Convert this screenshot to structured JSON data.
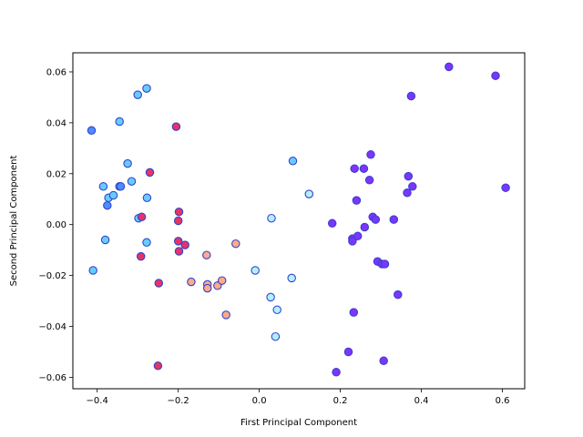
{
  "chart_data": {
    "type": "scatter",
    "title": "",
    "xlabel": "First Principal Component",
    "ylabel": "Second Principal Component",
    "xlim": [
      -0.46,
      0.655
    ],
    "ylim": [
      -0.0645,
      0.0675
    ],
    "xticks": [
      -0.4,
      -0.2,
      0.0,
      0.2,
      0.4,
      0.6
    ],
    "xtick_labels": [
      "−0.4",
      "−0.2",
      "0.0",
      "0.2",
      "0.4",
      "0.6"
    ],
    "yticks": [
      -0.06,
      -0.04,
      -0.02,
      0.0,
      0.02,
      0.04,
      0.06
    ],
    "ytick_labels": [
      "−0.06",
      "−0.04",
      "−0.02",
      "0.00",
      "0.02",
      "0.04",
      "0.06"
    ],
    "grid": false,
    "legend": "none",
    "edge_color": "#3344cc",
    "points": [
      {
        "x": -0.414,
        "y": 0.037,
        "color": "#4d8cff"
      },
      {
        "x": -0.41,
        "y": -0.018,
        "color": "#66ccff"
      },
      {
        "x": -0.385,
        "y": 0.015,
        "color": "#66ccff"
      },
      {
        "x": -0.38,
        "y": -0.006,
        "color": "#66ccff"
      },
      {
        "x": -0.375,
        "y": 0.0075,
        "color": "#4d8cff"
      },
      {
        "x": -0.372,
        "y": 0.0105,
        "color": "#66ccff"
      },
      {
        "x": -0.36,
        "y": 0.0115,
        "color": "#66ccff"
      },
      {
        "x": -0.345,
        "y": 0.015,
        "color": "#66ccff"
      },
      {
        "x": -0.342,
        "y": 0.015,
        "color": "#4d8cff"
      },
      {
        "x": -0.345,
        "y": 0.0405,
        "color": "#66ccff"
      },
      {
        "x": -0.325,
        "y": 0.024,
        "color": "#66ccff"
      },
      {
        "x": -0.315,
        "y": 0.017,
        "color": "#66ccff"
      },
      {
        "x": -0.3,
        "y": 0.051,
        "color": "#66ccff"
      },
      {
        "x": -0.298,
        "y": 0.0025,
        "color": "#66ccff"
      },
      {
        "x": -0.278,
        "y": 0.0535,
        "color": "#66ccff"
      },
      {
        "x": -0.278,
        "y": -0.007,
        "color": "#66ccff"
      },
      {
        "x": -0.277,
        "y": 0.0105,
        "color": "#66ccff"
      },
      {
        "x": -0.29,
        "y": 0.003,
        "color": "#e63366"
      },
      {
        "x": -0.292,
        "y": -0.0125,
        "color": "#e63366"
      },
      {
        "x": -0.27,
        "y": 0.0205,
        "color": "#e63366"
      },
      {
        "x": -0.248,
        "y": -0.023,
        "color": "#e63366"
      },
      {
        "x": -0.25,
        "y": -0.0555,
        "color": "#e63366"
      },
      {
        "x": -0.205,
        "y": 0.0385,
        "color": "#e63366"
      },
      {
        "x": -0.198,
        "y": 0.005,
        "color": "#e63366"
      },
      {
        "x": -0.2,
        "y": 0.0015,
        "color": "#e63366"
      },
      {
        "x": -0.2,
        "y": -0.0065,
        "color": "#e63366"
      },
      {
        "x": -0.198,
        "y": -0.0105,
        "color": "#e63366"
      },
      {
        "x": -0.183,
        "y": -0.008,
        "color": "#e63366"
      },
      {
        "x": -0.168,
        "y": -0.0225,
        "color": "#ffaa88"
      },
      {
        "x": -0.13,
        "y": -0.012,
        "color": "#ffaa88"
      },
      {
        "x": -0.128,
        "y": -0.0235,
        "color": "#ffaa88"
      },
      {
        "x": -0.128,
        "y": -0.025,
        "color": "#ffaa88"
      },
      {
        "x": -0.103,
        "y": -0.024,
        "color": "#ffaa88"
      },
      {
        "x": -0.092,
        "y": -0.022,
        "color": "#ffaa88"
      },
      {
        "x": -0.082,
        "y": -0.0355,
        "color": "#ffaa88"
      },
      {
        "x": -0.058,
        "y": -0.0075,
        "color": "#ffaa88"
      },
      {
        "x": -0.01,
        "y": -0.018,
        "color": "#b3f0ff"
      },
      {
        "x": 0.028,
        "y": -0.0285,
        "color": "#b3f0ff"
      },
      {
        "x": 0.03,
        "y": 0.0025,
        "color": "#b3f0ff"
      },
      {
        "x": 0.04,
        "y": -0.044,
        "color": "#b3f0ff"
      },
      {
        "x": 0.044,
        "y": -0.0335,
        "color": "#b3f0ff"
      },
      {
        "x": 0.08,
        "y": -0.021,
        "color": "#b3f0ff"
      },
      {
        "x": 0.083,
        "y": 0.025,
        "color": "#66ccff"
      },
      {
        "x": 0.123,
        "y": 0.012,
        "color": "#b3f0ff"
      },
      {
        "x": 0.18,
        "y": 0.0005,
        "color": "#7f33ff"
      },
      {
        "x": 0.19,
        "y": -0.058,
        "color": "#7f33ff"
      },
      {
        "x": 0.22,
        "y": -0.05,
        "color": "#7f33ff"
      },
      {
        "x": 0.23,
        "y": -0.0055,
        "color": "#7f33ff"
      },
      {
        "x": 0.23,
        "y": -0.0065,
        "color": "#7f33ff"
      },
      {
        "x": 0.233,
        "y": -0.0345,
        "color": "#7f33ff"
      },
      {
        "x": 0.235,
        "y": 0.022,
        "color": "#7f33ff"
      },
      {
        "x": 0.24,
        "y": 0.0095,
        "color": "#7f33ff"
      },
      {
        "x": 0.243,
        "y": -0.0045,
        "color": "#7f33ff"
      },
      {
        "x": 0.258,
        "y": 0.022,
        "color": "#7f33ff"
      },
      {
        "x": 0.26,
        "y": -0.001,
        "color": "#7f33ff"
      },
      {
        "x": 0.272,
        "y": 0.0175,
        "color": "#7f33ff"
      },
      {
        "x": 0.275,
        "y": 0.0275,
        "color": "#7f33ff"
      },
      {
        "x": 0.28,
        "y": 0.003,
        "color": "#7f33ff"
      },
      {
        "x": 0.287,
        "y": 0.002,
        "color": "#7f33ff"
      },
      {
        "x": 0.292,
        "y": -0.0145,
        "color": "#7f33ff"
      },
      {
        "x": 0.303,
        "y": -0.0155,
        "color": "#7f33ff"
      },
      {
        "x": 0.307,
        "y": -0.0535,
        "color": "#7f33ff"
      },
      {
        "x": 0.31,
        "y": -0.0155,
        "color": "#7f33ff"
      },
      {
        "x": 0.332,
        "y": 0.002,
        "color": "#7f33ff"
      },
      {
        "x": 0.342,
        "y": -0.0275,
        "color": "#7f33ff"
      },
      {
        "x": 0.365,
        "y": 0.0125,
        "color": "#7f33ff"
      },
      {
        "x": 0.368,
        "y": 0.019,
        "color": "#7f33ff"
      },
      {
        "x": 0.375,
        "y": 0.0505,
        "color": "#7f33ff"
      },
      {
        "x": 0.378,
        "y": 0.015,
        "color": "#7f33ff"
      },
      {
        "x": 0.468,
        "y": 0.062,
        "color": "#7f33ff"
      },
      {
        "x": 0.583,
        "y": 0.0585,
        "color": "#7f33ff"
      },
      {
        "x": 0.608,
        "y": 0.0145,
        "color": "#7f33ff"
      }
    ]
  }
}
